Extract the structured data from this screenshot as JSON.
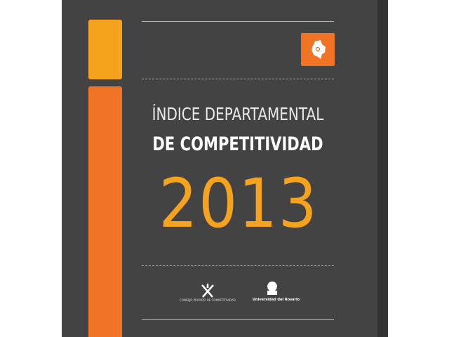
{
  "cover": {
    "title_line1": "ÍNDICE DEPARTAMENTAL",
    "title_line2": "DE COMPETITIVIDAD",
    "year": "2013",
    "icon": "colombia-map-pin-icon",
    "logos": [
      {
        "name": "Consejo Privado de Competitividad",
        "text": "CONSEJO PRIVADO DE COMPETITIVIDAD"
      },
      {
        "name": "Universidad del Rosario",
        "text": "Universidad del Rosario"
      }
    ],
    "colors": {
      "background": "#434343",
      "orange": "#f07423",
      "amber": "#f5a21d"
    }
  }
}
